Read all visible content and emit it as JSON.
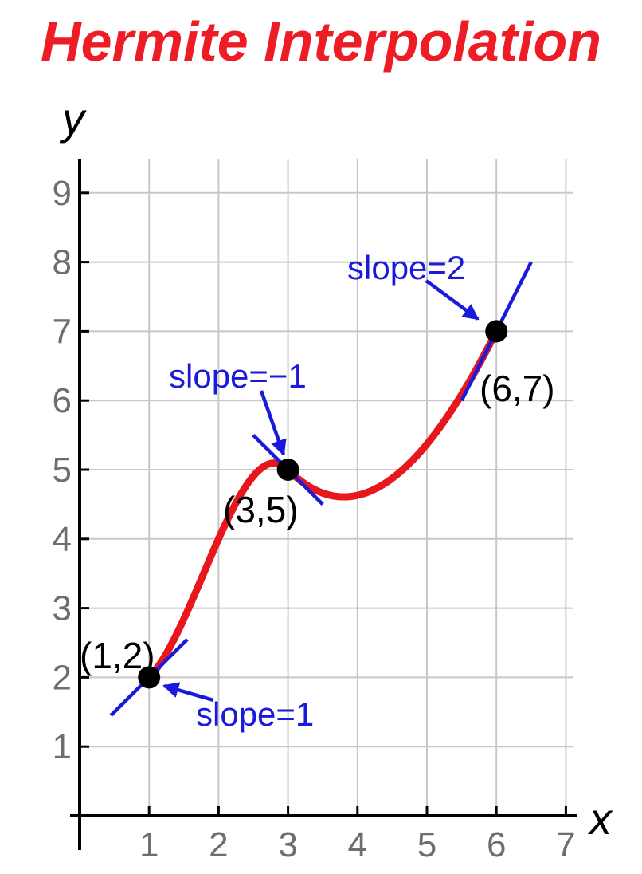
{
  "chart_data": {
    "type": "line",
    "title": "Hermite Interpolation",
    "xlabel": "x",
    "ylabel": "y",
    "xlim": [
      0,
      7
    ],
    "ylim": [
      0,
      9
    ],
    "x_ticks": [
      "1",
      "2",
      "3",
      "4",
      "5",
      "6",
      "7"
    ],
    "y_ticks": [
      "1",
      "2",
      "3",
      "4",
      "5",
      "6",
      "7",
      "8",
      "9"
    ],
    "grid": true,
    "points": [
      {
        "x": 1,
        "y": 2,
        "slope": 1,
        "label": "(1,2)",
        "slope_label": "slope=1"
      },
      {
        "x": 3,
        "y": 5,
        "slope": -1,
        "label": "(3,5)",
        "slope_label": "slope=−1"
      },
      {
        "x": 6,
        "y": 7,
        "slope": 2,
        "label": "(6,7)",
        "slope_label": "slope=2"
      }
    ],
    "colors": {
      "title": "#ee1c25",
      "curve": "#e8171d",
      "tangent": "#1a1adc",
      "slope_text": "#1a1adc",
      "point": "#000000",
      "grid": "#c8c8c8"
    }
  }
}
